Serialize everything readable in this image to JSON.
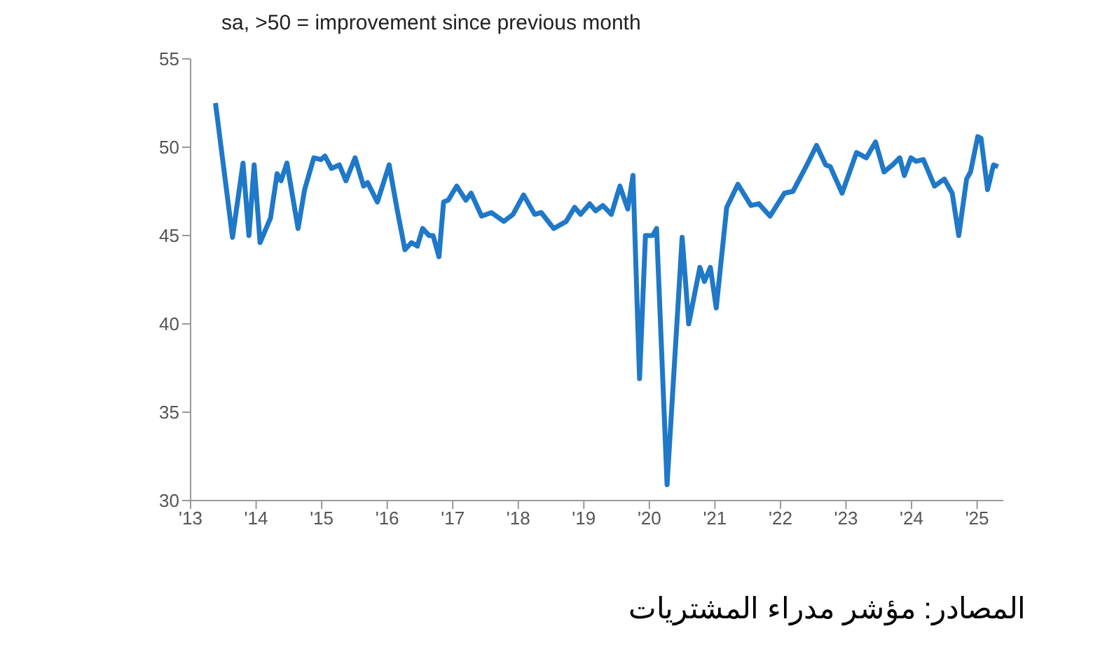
{
  "chart_data": {
    "type": "line",
    "subtitle": "sa, >50 = improvement since previous month",
    "annotations": [
      "المصادر: مؤشر مدراء المشتريات"
    ],
    "x": [
      2013.38,
      2013.64,
      2013.8,
      2013.89,
      2013.97,
      2014.06,
      2014.22,
      2014.32,
      2014.38,
      2014.47,
      2014.64,
      2014.74,
      2014.88,
      2014.99,
      2015.05,
      2015.15,
      2015.27,
      2015.37,
      2015.51,
      2015.64,
      2015.7,
      2015.85,
      2016.03,
      2016.15,
      2016.27,
      2016.37,
      2016.46,
      2016.54,
      2016.64,
      2016.7,
      2016.79,
      2016.86,
      2016.93,
      2017.06,
      2017.2,
      2017.28,
      2017.44,
      2017.59,
      2017.78,
      2017.92,
      2018.08,
      2018.25,
      2018.35,
      2018.54,
      2018.73,
      2018.86,
      2018.95,
      2019.09,
      2019.18,
      2019.29,
      2019.42,
      2019.55,
      2019.67,
      2019.75,
      2019.85,
      2019.94,
      2020.05,
      2020.11,
      2020.27,
      2020.5,
      2020.6,
      2020.77,
      2020.84,
      2020.93,
      2021.02,
      2021.18,
      2021.35,
      2021.55,
      2021.67,
      2021.84,
      2022.06,
      2022.19,
      2022.39,
      2022.55,
      2022.69,
      2022.76,
      2022.94,
      2023.16,
      2023.31,
      2023.45,
      2023.58,
      2023.71,
      2023.82,
      2023.89,
      2023.99,
      2024.07,
      2024.18,
      2024.35,
      2024.5,
      2024.62,
      2024.72,
      2024.84,
      2024.9,
      2025.01,
      2025.06,
      2025.16,
      2025.25,
      2025.32
    ],
    "series": [
      {
        "color": "#1f78c8",
        "values": [
          52.5,
          44.9,
          49.1,
          45.0,
          49.0,
          44.6,
          46.0,
          48.5,
          48.1,
          49.1,
          45.4,
          47.6,
          49.4,
          49.3,
          49.5,
          48.8,
          49.0,
          48.1,
          49.4,
          47.8,
          48.0,
          46.9,
          49.0,
          46.5,
          44.2,
          44.6,
          44.4,
          45.4,
          45.0,
          45.0,
          43.8,
          46.9,
          47.0,
          47.8,
          47.0,
          47.4,
          46.1,
          46.3,
          45.8,
          46.2,
          47.3,
          46.2,
          46.3,
          45.4,
          45.8,
          46.6,
          46.2,
          46.8,
          46.4,
          46.7,
          46.2,
          47.8,
          46.5,
          48.4,
          36.9,
          45.0,
          45.0,
          45.4,
          30.9,
          44.9,
          40.0,
          43.2,
          42.4,
          43.2,
          40.9,
          46.6,
          47.9,
          46.7,
          46.8,
          46.1,
          47.4,
          47.5,
          48.9,
          50.1,
          49.0,
          48.9,
          47.4,
          49.7,
          49.4,
          50.3,
          48.6,
          49.0,
          49.4,
          48.4,
          49.4,
          49.2,
          49.3,
          47.8,
          48.2,
          47.4,
          45.0,
          48.2,
          48.6,
          50.6,
          50.5,
          47.6,
          49.0,
          48.9
        ]
      }
    ],
    "xlim": [
      2013,
      2025.4
    ],
    "xticks": [
      {
        "value": 2013,
        "label": "'13"
      },
      {
        "value": 2014,
        "label": "'14"
      },
      {
        "value": 2015,
        "label": "'15"
      },
      {
        "value": 2016,
        "label": "'16"
      },
      {
        "value": 2017,
        "label": "'17"
      },
      {
        "value": 2018,
        "label": "'18"
      },
      {
        "value": 2019,
        "label": "'19"
      },
      {
        "value": 2020,
        "label": "'20"
      },
      {
        "value": 2021,
        "label": "'21"
      },
      {
        "value": 2022,
        "label": "'22"
      },
      {
        "value": 2023,
        "label": "'23"
      },
      {
        "value": 2024,
        "label": "'24"
      },
      {
        "value": 2025,
        "label": "'25"
      }
    ],
    "ylim": [
      30,
      55
    ],
    "yticks": [
      30,
      35,
      40,
      45,
      50,
      55
    ],
    "grid": false,
    "legend": false,
    "marker": "none",
    "line_style": "solid"
  }
}
